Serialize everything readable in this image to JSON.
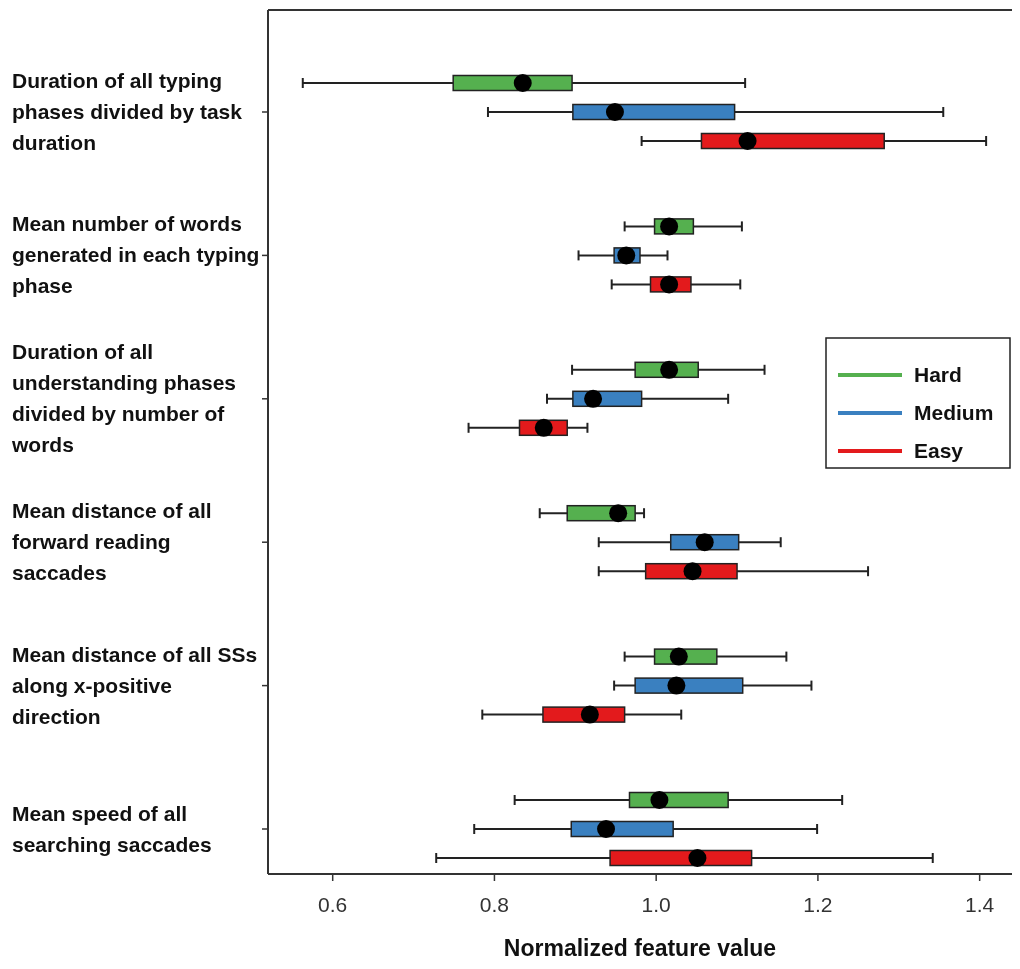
{
  "chart_data": {
    "type": "box",
    "orientation": "horizontal",
    "xlabel": "Normalized feature value",
    "legend": "right",
    "marker": "circle",
    "categories": [
      "Duration of all typing phases divided by task duration",
      "Mean number of words generated in each typing phase",
      "Duration of all understanding phases divided by number of words",
      "Mean distance of all forward reading saccades",
      "Mean distance of all SSs along x-positive direction",
      "Mean speed of all searching saccades"
    ],
    "xlim": [
      0.52,
      1.44
    ],
    "xticks": [
      0.6,
      0.8,
      {
        "value": 1,
        "label": "1.0"
      },
      1.2,
      1.4
    ],
    "series": [
      {
        "name": "Hard",
        "color": "#55b04f",
        "boxes": [
          {
            "low": 0.563,
            "q1": 0.749,
            "median": 0.835,
            "q3": 0.896,
            "high": 1.11
          },
          {
            "low": 0.961,
            "q1": 0.998,
            "median": 1.016,
            "q3": 1.046,
            "high": 1.106
          },
          {
            "low": 0.896,
            "q1": 0.974,
            "median": 1.016,
            "q3": 1.052,
            "high": 1.134
          },
          {
            "low": 0.856,
            "q1": 0.89,
            "median": 0.953,
            "q3": 0.974,
            "high": 0.985
          },
          {
            "low": 0.961,
            "q1": 0.998,
            "median": 1.028,
            "q3": 1.075,
            "high": 1.161
          },
          {
            "low": 0.825,
            "q1": 0.967,
            "median": 1.004,
            "q3": 1.089,
            "high": 1.23
          }
        ]
      },
      {
        "name": "Medium",
        "color": "#3a80c0",
        "boxes": [
          {
            "low": 0.792,
            "q1": 0.897,
            "median": 0.949,
            "q3": 1.097,
            "high": 1.355
          },
          {
            "low": 0.904,
            "q1": 0.948,
            "median": 0.963,
            "q3": 0.98,
            "high": 1.014
          },
          {
            "low": 0.865,
            "q1": 0.897,
            "median": 0.922,
            "q3": 0.982,
            "high": 1.089
          },
          {
            "low": 0.929,
            "q1": 1.018,
            "median": 1.06,
            "q3": 1.102,
            "high": 1.154
          },
          {
            "low": 0.948,
            "q1": 0.974,
            "median": 1.025,
            "q3": 1.107,
            "high": 1.192
          },
          {
            "low": 0.775,
            "q1": 0.895,
            "median": 0.938,
            "q3": 1.021,
            "high": 1.199
          }
        ]
      },
      {
        "name": "Easy",
        "color": "#e31a1c",
        "boxes": [
          {
            "low": 0.982,
            "q1": 1.056,
            "median": 1.113,
            "q3": 1.282,
            "high": 1.408
          },
          {
            "low": 0.945,
            "q1": 0.993,
            "median": 1.016,
            "q3": 1.043,
            "high": 1.104
          },
          {
            "low": 0.768,
            "q1": 0.831,
            "median": 0.861,
            "q3": 0.89,
            "high": 0.915
          },
          {
            "low": 0.929,
            "q1": 0.987,
            "median": 1.045,
            "q3": 1.1,
            "high": 1.262
          },
          {
            "low": 0.785,
            "q1": 0.86,
            "median": 0.918,
            "q3": 0.961,
            "high": 1.031
          },
          {
            "low": 0.728,
            "q1": 0.943,
            "median": 1.051,
            "q3": 1.118,
            "high": 1.342
          }
        ]
      }
    ]
  }
}
